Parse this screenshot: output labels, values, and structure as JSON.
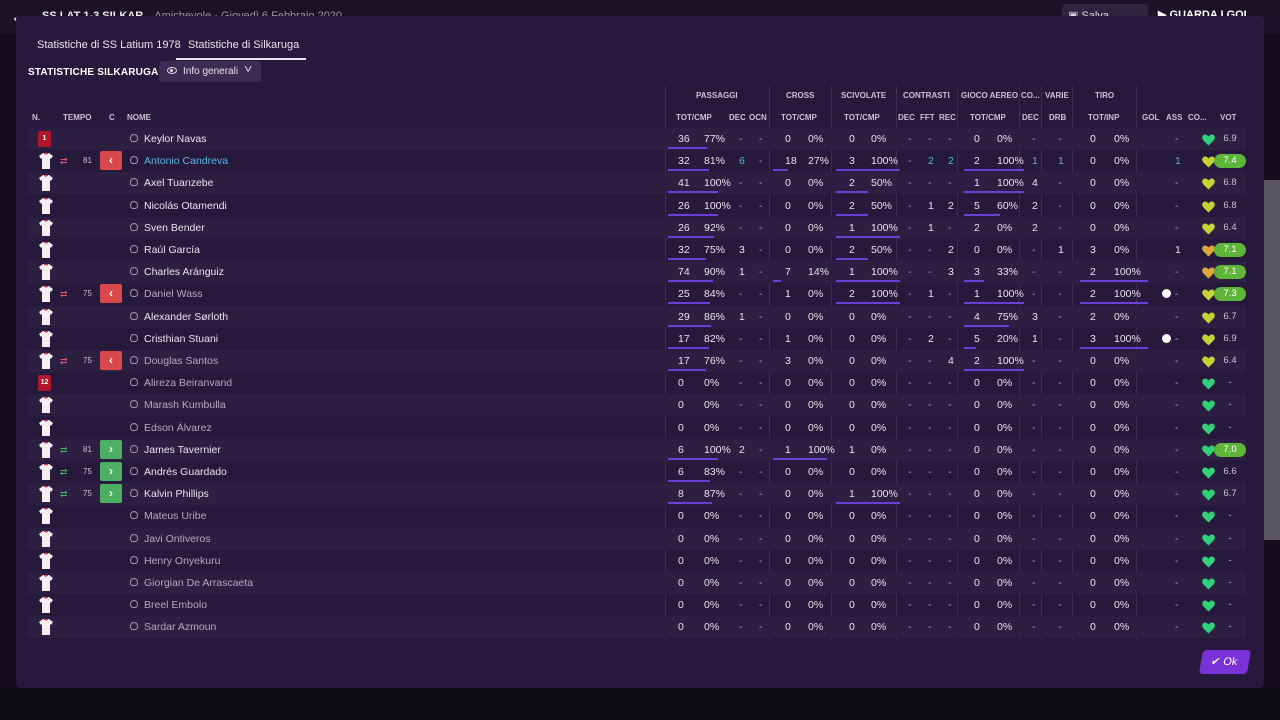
{
  "top_bar": {
    "match_title": "SS LAT 1-3 SILKAR",
    "match_subtitle": "Amichevole - Giovedì 6 Febbraio 2020",
    "save_label": "Salva partita",
    "play_label": "GUARDA I GOL"
  },
  "tabs": [
    {
      "label": "Statistiche di SS Latium 1978",
      "active": false
    },
    {
      "label": "Statistiche di Silkaruga",
      "active": true
    }
  ],
  "section_title": "STATISTICHE SILKARUGA",
  "dropdown": {
    "icon": "eye-icon",
    "selected": "Info generali"
  },
  "groups": {
    "passaggi": "PASSAGGI",
    "cross": "CROSS",
    "scivolate": "SCIVOLATE",
    "contrasti": "CONTRASTI",
    "gioco_aereo": "GIOCO AEREO",
    "co": "CO...",
    "varie": "VARIE",
    "tiro": "TIRO"
  },
  "columns": {
    "n": "N.",
    "tempo": "TEMPO",
    "c": "C",
    "nome": "NOME",
    "pass_totcmp": "TOT/CMP",
    "pass_dec": "DEC",
    "pass_ocn": "OCN",
    "cross_totcmp": "TOT/CMP",
    "scivolate_totcmp": "TOT/CMP",
    "contr_dec": "DEC",
    "contr_fft": "FFT",
    "contr_rec": "REC",
    "aereo_totcmp": "TOT/CMP",
    "co_dec": "DEC",
    "varie_drb": "DRB",
    "tiro_totinp": "TOT/INP",
    "gol": "GOL",
    "ass": "ASS",
    "co": "CO...",
    "vot": "VOT"
  },
  "players": [
    {
      "num": "1",
      "gk": true,
      "sub": null,
      "time": "",
      "name": "Keylor Navas",
      "active": true,
      "pass_tot": "36",
      "pass_pct": "77%",
      "pass_fill": 0.77,
      "dec": "-",
      "ocn": "-",
      "cross_tot": "0",
      "cross_pct": "0%",
      "cross_fill": 0,
      "sciv_tot": "0",
      "sciv_pct": "0%",
      "sciv_fill": 0,
      "c_dec": "-",
      "fft": "-",
      "rec": "-",
      "aer_tot": "0",
      "aer_pct": "0%",
      "aer_fill": 0,
      "co_dec": "-",
      "drb": "-",
      "tiro_tot": "0",
      "tiro_pct": "0%",
      "tiro_fill": 0,
      "gol": "",
      "ass": "-",
      "heart": "#33d07a",
      "vot": "6.9",
      "vot_hi": false,
      "ball": false,
      "name_color": "#e8e4ee"
    },
    {
      "num": "",
      "gk": false,
      "sub": "out",
      "time": "81",
      "name": "Antonio Candreva",
      "active": true,
      "pass_tot": "32",
      "pass_pct": "81%",
      "pass_fill": 0.81,
      "dec": "6",
      "ocn": "-",
      "cross_tot": "18",
      "cross_pct": "27%",
      "cross_fill": 0.27,
      "sciv_tot": "3",
      "sciv_pct": "100%",
      "sciv_fill": 1,
      "c_dec": "-",
      "fft": "2",
      "rec": "2",
      "aer_tot": "2",
      "aer_pct": "100%",
      "aer_fill": 1,
      "co_dec": "1",
      "drb": "1",
      "tiro_tot": "0",
      "tiro_pct": "0%",
      "tiro_fill": 0,
      "gol": "",
      "ass": "1",
      "heart": "#c6d433",
      "vot": "7.4",
      "vot_hi": true,
      "ball": false,
      "name_color": "#5ab4e6"
    },
    {
      "num": "",
      "gk": false,
      "sub": null,
      "time": "",
      "name": "Axel Tuanzebe",
      "active": true,
      "pass_tot": "41",
      "pass_pct": "100%",
      "pass_fill": 1,
      "dec": "-",
      "ocn": "-",
      "cross_tot": "0",
      "cross_pct": "0%",
      "cross_fill": 0,
      "sciv_tot": "2",
      "sciv_pct": "50%",
      "sciv_fill": 0.5,
      "c_dec": "-",
      "fft": "-",
      "rec": "-",
      "aer_tot": "1",
      "aer_pct": "100%",
      "aer_fill": 1,
      "co_dec": "4",
      "drb": "-",
      "tiro_tot": "0",
      "tiro_pct": "0%",
      "tiro_fill": 0,
      "gol": "",
      "ass": "-",
      "heart": "#c6d433",
      "vot": "6.8",
      "vot_hi": false,
      "ball": false,
      "name_color": "#e8e4ee"
    },
    {
      "num": "",
      "gk": false,
      "sub": null,
      "time": "",
      "name": "Nicolás Otamendi",
      "active": true,
      "pass_tot": "26",
      "pass_pct": "100%",
      "pass_fill": 1,
      "dec": "-",
      "ocn": "-",
      "cross_tot": "0",
      "cross_pct": "0%",
      "cross_fill": 0,
      "sciv_tot": "2",
      "sciv_pct": "50%",
      "sciv_fill": 0.5,
      "c_dec": "-",
      "fft": "1",
      "rec": "2",
      "aer_tot": "5",
      "aer_pct": "60%",
      "aer_fill": 0.6,
      "co_dec": "2",
      "drb": "-",
      "tiro_tot": "0",
      "tiro_pct": "0%",
      "tiro_fill": 0,
      "gol": "",
      "ass": "-",
      "heart": "#c6d433",
      "vot": "6.8",
      "vot_hi": false,
      "ball": false,
      "name_color": "#e8e4ee"
    },
    {
      "num": "",
      "gk": false,
      "sub": null,
      "time": "",
      "name": "Sven Bender",
      "active": true,
      "pass_tot": "26",
      "pass_pct": "92%",
      "pass_fill": 0.92,
      "dec": "-",
      "ocn": "-",
      "cross_tot": "0",
      "cross_pct": "0%",
      "cross_fill": 0,
      "sciv_tot": "1",
      "sciv_pct": "100%",
      "sciv_fill": 1,
      "c_dec": "-",
      "fft": "1",
      "rec": "-",
      "aer_tot": "2",
      "aer_pct": "0%",
      "aer_fill": 0,
      "co_dec": "2",
      "drb": "-",
      "tiro_tot": "0",
      "tiro_pct": "0%",
      "tiro_fill": 0,
      "gol": "",
      "ass": "-",
      "heart": "#c6d433",
      "vot": "6.4",
      "vot_hi": false,
      "ball": false,
      "name_color": "#e8e4ee"
    },
    {
      "num": "",
      "gk": false,
      "sub": null,
      "time": "",
      "name": "Raúl García",
      "active": true,
      "pass_tot": "32",
      "pass_pct": "75%",
      "pass_fill": 0.75,
      "dec": "3",
      "ocn": "-",
      "cross_tot": "0",
      "cross_pct": "0%",
      "cross_fill": 0,
      "sciv_tot": "2",
      "sciv_pct": "50%",
      "sciv_fill": 0.5,
      "c_dec": "-",
      "fft": "-",
      "rec": "2",
      "aer_tot": "0",
      "aer_pct": "0%",
      "aer_fill": 0,
      "co_dec": "-",
      "drb": "1",
      "tiro_tot": "3",
      "tiro_pct": "0%",
      "tiro_fill": 0,
      "gol": "",
      "ass": "1",
      "heart": "#e0a63a",
      "vot": "7.1",
      "vot_hi": true,
      "ball": false,
      "name_color": "#e8e4ee"
    },
    {
      "num": "",
      "gk": false,
      "sub": null,
      "time": "",
      "name": "Charles Aránguiz",
      "active": true,
      "pass_tot": "74",
      "pass_pct": "90%",
      "pass_fill": 0.9,
      "dec": "1",
      "ocn": "-",
      "cross_tot": "7",
      "cross_pct": "14%",
      "cross_fill": 0.14,
      "sciv_tot": "1",
      "sciv_pct": "100%",
      "sciv_fill": 1,
      "c_dec": "-",
      "fft": "-",
      "rec": "3",
      "aer_tot": "3",
      "aer_pct": "33%",
      "aer_fill": 0.33,
      "co_dec": "-",
      "drb": "-",
      "tiro_tot": "2",
      "tiro_pct": "100%",
      "tiro_fill": 1,
      "gol": "",
      "ass": "-",
      "heart": "#e0a63a",
      "vot": "7.1",
      "vot_hi": true,
      "ball": false,
      "name_color": "#e8e4ee"
    },
    {
      "num": "",
      "gk": false,
      "sub": "out",
      "time": "75",
      "name": "Daniel Wass",
      "active": false,
      "pass_tot": "25",
      "pass_pct": "84%",
      "pass_fill": 0.84,
      "dec": "-",
      "ocn": "-",
      "cross_tot": "1",
      "cross_pct": "0%",
      "cross_fill": 0,
      "sciv_tot": "2",
      "sciv_pct": "100%",
      "sciv_fill": 1,
      "c_dec": "-",
      "fft": "1",
      "rec": "-",
      "aer_tot": "1",
      "aer_pct": "100%",
      "aer_fill": 1,
      "co_dec": "-",
      "drb": "-",
      "tiro_tot": "2",
      "tiro_pct": "100%",
      "tiro_fill": 1,
      "gol": "",
      "ass": "-",
      "heart": "#c6d433",
      "vot": "7.3",
      "vot_hi": true,
      "ball": true,
      "name_color": "#b3abc0"
    },
    {
      "num": "",
      "gk": false,
      "sub": null,
      "time": "",
      "name": "Alexander Sørloth",
      "active": true,
      "pass_tot": "29",
      "pass_pct": "86%",
      "pass_fill": 0.86,
      "dec": "1",
      "ocn": "-",
      "cross_tot": "0",
      "cross_pct": "0%",
      "cross_fill": 0,
      "sciv_tot": "0",
      "sciv_pct": "0%",
      "sciv_fill": 0,
      "c_dec": "-",
      "fft": "-",
      "rec": "-",
      "aer_tot": "4",
      "aer_pct": "75%",
      "aer_fill": 0.75,
      "co_dec": "3",
      "drb": "-",
      "tiro_tot": "2",
      "tiro_pct": "0%",
      "tiro_fill": 0,
      "gol": "",
      "ass": "-",
      "heart": "#c6d433",
      "vot": "6.7",
      "vot_hi": false,
      "ball": false,
      "name_color": "#e8e4ee"
    },
    {
      "num": "",
      "gk": false,
      "sub": null,
      "time": "",
      "name": "Cristhian Stuani",
      "active": true,
      "pass_tot": "17",
      "pass_pct": "82%",
      "pass_fill": 0.82,
      "dec": "-",
      "ocn": "-",
      "cross_tot": "1",
      "cross_pct": "0%",
      "cross_fill": 0,
      "sciv_tot": "0",
      "sciv_pct": "0%",
      "sciv_fill": 0,
      "c_dec": "-",
      "fft": "2",
      "rec": "-",
      "aer_tot": "5",
      "aer_pct": "20%",
      "aer_fill": 0.2,
      "co_dec": "1",
      "drb": "-",
      "tiro_tot": "3",
      "tiro_pct": "100%",
      "tiro_fill": 1,
      "gol": "",
      "ass": "-",
      "heart": "#c6d433",
      "vot": "6.9",
      "vot_hi": false,
      "ball": true,
      "name_color": "#e8e4ee"
    },
    {
      "num": "",
      "gk": false,
      "sub": "out",
      "time": "75",
      "name": "Douglas Santos",
      "active": false,
      "pass_tot": "17",
      "pass_pct": "76%",
      "pass_fill": 0.76,
      "dec": "-",
      "ocn": "-",
      "cross_tot": "3",
      "cross_pct": "0%",
      "cross_fill": 0,
      "sciv_tot": "0",
      "sciv_pct": "0%",
      "sciv_fill": 0,
      "c_dec": "-",
      "fft": "-",
      "rec": "4",
      "aer_tot": "2",
      "aer_pct": "100%",
      "aer_fill": 1,
      "co_dec": "-",
      "drb": "-",
      "tiro_tot": "0",
      "tiro_pct": "0%",
      "tiro_fill": 0,
      "gol": "",
      "ass": "-",
      "heart": "#c6d433",
      "vot": "6.4",
      "vot_hi": false,
      "ball": false,
      "name_color": "#b3abc0"
    },
    {
      "num": "12",
      "gk": true,
      "sub": null,
      "time": "",
      "name": "Alireza Beiranvand",
      "active": false,
      "pass_tot": "0",
      "pass_pct": "0%",
      "pass_fill": 0,
      "dec": "-",
      "ocn": "-",
      "cross_tot": "0",
      "cross_pct": "0%",
      "cross_fill": 0,
      "sciv_tot": "0",
      "sciv_pct": "0%",
      "sciv_fill": 0,
      "c_dec": "-",
      "fft": "-",
      "rec": "-",
      "aer_tot": "0",
      "aer_pct": "0%",
      "aer_fill": 0,
      "co_dec": "-",
      "drb": "-",
      "tiro_tot": "0",
      "tiro_pct": "0%",
      "tiro_fill": 0,
      "gol": "",
      "ass": "-",
      "heart": "#33d07a",
      "vot": "-",
      "vot_hi": false,
      "ball": false,
      "name_color": "#b3abc0"
    },
    {
      "num": "",
      "gk": false,
      "sub": null,
      "time": "",
      "name": "Marash Kumbulla",
      "active": false,
      "pass_tot": "0",
      "pass_pct": "0%",
      "pass_fill": 0,
      "dec": "-",
      "ocn": "-",
      "cross_tot": "0",
      "cross_pct": "0%",
      "cross_fill": 0,
      "sciv_tot": "0",
      "sciv_pct": "0%",
      "sciv_fill": 0,
      "c_dec": "-",
      "fft": "-",
      "rec": "-",
      "aer_tot": "0",
      "aer_pct": "0%",
      "aer_fill": 0,
      "co_dec": "-",
      "drb": "-",
      "tiro_tot": "0",
      "tiro_pct": "0%",
      "tiro_fill": 0,
      "gol": "",
      "ass": "-",
      "heart": "#33d07a",
      "vot": "-",
      "vot_hi": false,
      "ball": false,
      "name_color": "#b3abc0"
    },
    {
      "num": "",
      "gk": false,
      "sub": null,
      "time": "",
      "name": "Edson Álvarez",
      "active": false,
      "pass_tot": "0",
      "pass_pct": "0%",
      "pass_fill": 0,
      "dec": "-",
      "ocn": "-",
      "cross_tot": "0",
      "cross_pct": "0%",
      "cross_fill": 0,
      "sciv_tot": "0",
      "sciv_pct": "0%",
      "sciv_fill": 0,
      "c_dec": "-",
      "fft": "-",
      "rec": "-",
      "aer_tot": "0",
      "aer_pct": "0%",
      "aer_fill": 0,
      "co_dec": "-",
      "drb": "-",
      "tiro_tot": "0",
      "tiro_pct": "0%",
      "tiro_fill": 0,
      "gol": "",
      "ass": "-",
      "heart": "#33d07a",
      "vot": "-",
      "vot_hi": false,
      "ball": false,
      "name_color": "#b3abc0"
    },
    {
      "num": "",
      "gk": false,
      "sub": "in",
      "time": "81",
      "name": "James Tavernier",
      "active": true,
      "pass_tot": "6",
      "pass_pct": "100%",
      "pass_fill": 1,
      "dec": "2",
      "ocn": "-",
      "cross_tot": "1",
      "cross_pct": "100%",
      "cross_fill": 1,
      "sciv_tot": "1",
      "sciv_pct": "0%",
      "sciv_fill": 0,
      "c_dec": "-",
      "fft": "-",
      "rec": "-",
      "aer_tot": "0",
      "aer_pct": "0%",
      "aer_fill": 0,
      "co_dec": "-",
      "drb": "-",
      "tiro_tot": "0",
      "tiro_pct": "0%",
      "tiro_fill": 0,
      "gol": "",
      "ass": "-",
      "heart": "#33d07a",
      "vot": "7.0",
      "vot_hi": true,
      "ball": false,
      "name_color": "#e8e4ee"
    },
    {
      "num": "",
      "gk": false,
      "sub": "in",
      "time": "75",
      "name": "Andrés Guardado",
      "active": true,
      "pass_tot": "6",
      "pass_pct": "83%",
      "pass_fill": 0.83,
      "dec": "-",
      "ocn": "-",
      "cross_tot": "0",
      "cross_pct": "0%",
      "cross_fill": 0,
      "sciv_tot": "0",
      "sciv_pct": "0%",
      "sciv_fill": 0,
      "c_dec": "-",
      "fft": "-",
      "rec": "-",
      "aer_tot": "0",
      "aer_pct": "0%",
      "aer_fill": 0,
      "co_dec": "-",
      "drb": "-",
      "tiro_tot": "0",
      "tiro_pct": "0%",
      "tiro_fill": 0,
      "gol": "",
      "ass": "-",
      "heart": "#33d07a",
      "vot": "6.6",
      "vot_hi": false,
      "ball": false,
      "name_color": "#e8e4ee"
    },
    {
      "num": "",
      "gk": false,
      "sub": "in",
      "time": "75",
      "name": "Kalvin Phillips",
      "active": true,
      "pass_tot": "8",
      "pass_pct": "87%",
      "pass_fill": 0.87,
      "dec": "-",
      "ocn": "-",
      "cross_tot": "0",
      "cross_pct": "0%",
      "cross_fill": 0,
      "sciv_tot": "1",
      "sciv_pct": "100%",
      "sciv_fill": 1,
      "c_dec": "-",
      "fft": "-",
      "rec": "-",
      "aer_tot": "0",
      "aer_pct": "0%",
      "aer_fill": 0,
      "co_dec": "-",
      "drb": "-",
      "tiro_tot": "0",
      "tiro_pct": "0%",
      "tiro_fill": 0,
      "gol": "",
      "ass": "-",
      "heart": "#33d07a",
      "vot": "6.7",
      "vot_hi": false,
      "ball": false,
      "name_color": "#e8e4ee"
    },
    {
      "num": "",
      "gk": false,
      "sub": null,
      "time": "",
      "name": "Mateus Uribe",
      "active": false,
      "pass_tot": "0",
      "pass_pct": "0%",
      "pass_fill": 0,
      "dec": "-",
      "ocn": "-",
      "cross_tot": "0",
      "cross_pct": "0%",
      "cross_fill": 0,
      "sciv_tot": "0",
      "sciv_pct": "0%",
      "sciv_fill": 0,
      "c_dec": "-",
      "fft": "-",
      "rec": "-",
      "aer_tot": "0",
      "aer_pct": "0%",
      "aer_fill": 0,
      "co_dec": "-",
      "drb": "-",
      "tiro_tot": "0",
      "tiro_pct": "0%",
      "tiro_fill": 0,
      "gol": "",
      "ass": "-",
      "heart": "#33d07a",
      "vot": "-",
      "vot_hi": false,
      "ball": false,
      "name_color": "#b3abc0"
    },
    {
      "num": "",
      "gk": false,
      "sub": null,
      "time": "",
      "name": "Javi Ontiveros",
      "active": false,
      "pass_tot": "0",
      "pass_pct": "0%",
      "pass_fill": 0,
      "dec": "-",
      "ocn": "-",
      "cross_tot": "0",
      "cross_pct": "0%",
      "cross_fill": 0,
      "sciv_tot": "0",
      "sciv_pct": "0%",
      "sciv_fill": 0,
      "c_dec": "-",
      "fft": "-",
      "rec": "-",
      "aer_tot": "0",
      "aer_pct": "0%",
      "aer_fill": 0,
      "co_dec": "-",
      "drb": "-",
      "tiro_tot": "0",
      "tiro_pct": "0%",
      "tiro_fill": 0,
      "gol": "",
      "ass": "-",
      "heart": "#33d07a",
      "vot": "-",
      "vot_hi": false,
      "ball": false,
      "name_color": "#b3abc0"
    },
    {
      "num": "",
      "gk": false,
      "sub": null,
      "time": "",
      "name": "Henry Onyekuru",
      "active": false,
      "pass_tot": "0",
      "pass_pct": "0%",
      "pass_fill": 0,
      "dec": "-",
      "ocn": "-",
      "cross_tot": "0",
      "cross_pct": "0%",
      "cross_fill": 0,
      "sciv_tot": "0",
      "sciv_pct": "0%",
      "sciv_fill": 0,
      "c_dec": "-",
      "fft": "-",
      "rec": "-",
      "aer_tot": "0",
      "aer_pct": "0%",
      "aer_fill": 0,
      "co_dec": "-",
      "drb": "-",
      "tiro_tot": "0",
      "tiro_pct": "0%",
      "tiro_fill": 0,
      "gol": "",
      "ass": "-",
      "heart": "#33d07a",
      "vot": "-",
      "vot_hi": false,
      "ball": false,
      "name_color": "#b3abc0"
    },
    {
      "num": "",
      "gk": false,
      "sub": null,
      "time": "",
      "name": "Giorgian De Arrascaeta",
      "active": false,
      "pass_tot": "0",
      "pass_pct": "0%",
      "pass_fill": 0,
      "dec": "-",
      "ocn": "-",
      "cross_tot": "0",
      "cross_pct": "0%",
      "cross_fill": 0,
      "sciv_tot": "0",
      "sciv_pct": "0%",
      "sciv_fill": 0,
      "c_dec": "-",
      "fft": "-",
      "rec": "-",
      "aer_tot": "0",
      "aer_pct": "0%",
      "aer_fill": 0,
      "co_dec": "-",
      "drb": "-",
      "tiro_tot": "0",
      "tiro_pct": "0%",
      "tiro_fill": 0,
      "gol": "",
      "ass": "-",
      "heart": "#33d07a",
      "vot": "-",
      "vot_hi": false,
      "ball": false,
      "name_color": "#b3abc0"
    },
    {
      "num": "",
      "gk": false,
      "sub": null,
      "time": "",
      "name": "Breel Embolo",
      "active": false,
      "pass_tot": "0",
      "pass_pct": "0%",
      "pass_fill": 0,
      "dec": "-",
      "ocn": "-",
      "cross_tot": "0",
      "cross_pct": "0%",
      "cross_fill": 0,
      "sciv_tot": "0",
      "sciv_pct": "0%",
      "sciv_fill": 0,
      "c_dec": "-",
      "fft": "-",
      "rec": "-",
      "aer_tot": "0",
      "aer_pct": "0%",
      "aer_fill": 0,
      "co_dec": "-",
      "drb": "-",
      "tiro_tot": "0",
      "tiro_pct": "0%",
      "tiro_fill": 0,
      "gol": "",
      "ass": "-",
      "heart": "#33d07a",
      "vot": "-",
      "vot_hi": false,
      "ball": false,
      "name_color": "#b3abc0"
    },
    {
      "num": "",
      "gk": false,
      "sub": null,
      "time": "",
      "name": "Sardar Azmoun",
      "active": false,
      "pass_tot": "0",
      "pass_pct": "0%",
      "pass_fill": 0,
      "dec": "-",
      "ocn": "-",
      "cross_tot": "0",
      "cross_pct": "0%",
      "cross_fill": 0,
      "sciv_tot": "0",
      "sciv_pct": "0%",
      "sciv_fill": 0,
      "c_dec": "-",
      "fft": "-",
      "rec": "-",
      "aer_tot": "0",
      "aer_pct": "0%",
      "aer_fill": 0,
      "co_dec": "-",
      "drb": "-",
      "tiro_tot": "0",
      "tiro_pct": "0%",
      "tiro_fill": 0,
      "gol": "",
      "ass": "-",
      "heart": "#33d07a",
      "vot": "-",
      "vot_hi": false,
      "ball": false,
      "name_color": "#b3abc0"
    }
  ],
  "ok_label": "Ok",
  "colors": {
    "accent": "#7a32d8",
    "bar": "#6a3fd6",
    "rating_high": "#5fb53a",
    "sub_out": "#d9484a",
    "sub_in": "#4caf62",
    "name_highlight": "#5ab4e6"
  }
}
